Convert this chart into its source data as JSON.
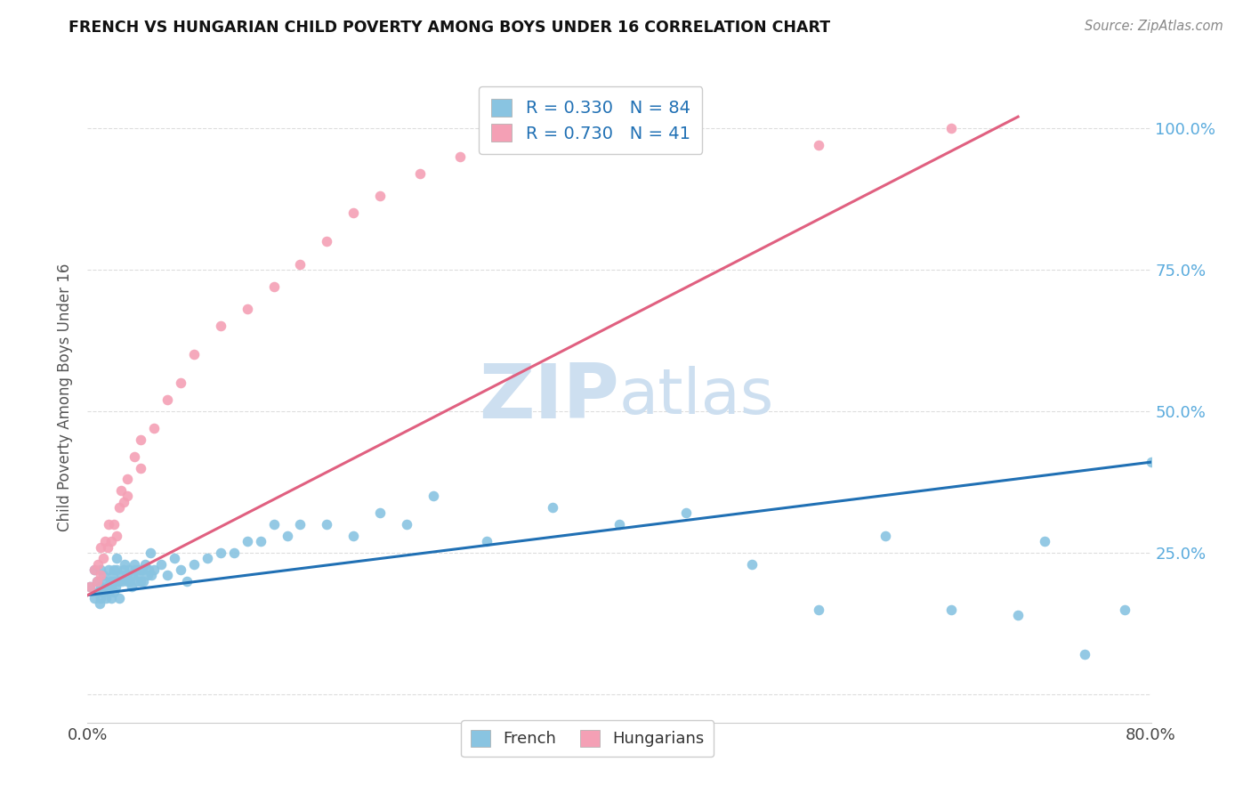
{
  "title": "FRENCH VS HUNGARIAN CHILD POVERTY AMONG BOYS UNDER 16 CORRELATION CHART",
  "source": "Source: ZipAtlas.com",
  "ylabel": "Child Poverty Among Boys Under 16",
  "xlim": [
    0.0,
    0.8
  ],
  "ylim": [
    -0.05,
    1.1
  ],
  "french_color": "#89c4e1",
  "hungarian_color": "#f4a0b5",
  "french_line_color": "#2070b4",
  "hungarian_line_color": "#e06080",
  "french_R": 0.33,
  "french_N": 84,
  "hungarian_R": 0.73,
  "hungarian_N": 41,
  "watermark_color": "#cddff0",
  "background_color": "#ffffff",
  "french_line_x0": 0.0,
  "french_line_y0": 0.175,
  "french_line_x1": 0.8,
  "french_line_y1": 0.41,
  "hungarian_line_x0": 0.0,
  "hungarian_line_y0": 0.175,
  "hungarian_line_x1": 0.7,
  "hungarian_line_y1": 1.02,
  "french_x": [
    0.002,
    0.005,
    0.005,
    0.007,
    0.008,
    0.009,
    0.01,
    0.01,
    0.01,
    0.012,
    0.012,
    0.013,
    0.014,
    0.015,
    0.016,
    0.016,
    0.017,
    0.018,
    0.018,
    0.019,
    0.02,
    0.02,
    0.02,
    0.021,
    0.022,
    0.022,
    0.023,
    0.024,
    0.025,
    0.026,
    0.027,
    0.028,
    0.03,
    0.03,
    0.031,
    0.032,
    0.033,
    0.034,
    0.035,
    0.036,
    0.037,
    0.038,
    0.04,
    0.04,
    0.041,
    0.042,
    0.043,
    0.045,
    0.046,
    0.047,
    0.048,
    0.05,
    0.055,
    0.06,
    0.065,
    0.07,
    0.075,
    0.08,
    0.09,
    0.1,
    0.11,
    0.12,
    0.13,
    0.14,
    0.15,
    0.16,
    0.18,
    0.2,
    0.22,
    0.24,
    0.26,
    0.3,
    0.35,
    0.4,
    0.45,
    0.5,
    0.55,
    0.6,
    0.65,
    0.7,
    0.72,
    0.75,
    0.78,
    0.8
  ],
  "french_y": [
    0.19,
    0.22,
    0.17,
    0.2,
    0.18,
    0.16,
    0.22,
    0.19,
    0.17,
    0.21,
    0.18,
    0.2,
    0.17,
    0.19,
    0.18,
    0.22,
    0.2,
    0.19,
    0.17,
    0.21,
    0.22,
    0.18,
    0.2,
    0.19,
    0.22,
    0.24,
    0.2,
    0.17,
    0.21,
    0.2,
    0.22,
    0.23,
    0.2,
    0.21,
    0.22,
    0.2,
    0.19,
    0.21,
    0.23,
    0.22,
    0.2,
    0.21,
    0.22,
    0.2,
    0.22,
    0.2,
    0.23,
    0.21,
    0.22,
    0.25,
    0.21,
    0.22,
    0.23,
    0.21,
    0.24,
    0.22,
    0.2,
    0.23,
    0.24,
    0.25,
    0.25,
    0.27,
    0.27,
    0.3,
    0.28,
    0.3,
    0.3,
    0.28,
    0.32,
    0.3,
    0.35,
    0.27,
    0.33,
    0.3,
    0.32,
    0.23,
    0.15,
    0.28,
    0.15,
    0.14,
    0.27,
    0.07,
    0.15,
    0.41
  ],
  "hungarian_x": [
    0.002,
    0.005,
    0.007,
    0.008,
    0.01,
    0.01,
    0.012,
    0.013,
    0.015,
    0.016,
    0.018,
    0.02,
    0.022,
    0.024,
    0.025,
    0.027,
    0.03,
    0.03,
    0.035,
    0.04,
    0.04,
    0.05,
    0.06,
    0.07,
    0.08,
    0.1,
    0.12,
    0.14,
    0.16,
    0.18,
    0.2,
    0.22,
    0.25,
    0.28,
    0.3,
    0.33,
    0.35,
    0.4,
    0.45,
    0.55,
    0.65
  ],
  "hungarian_y": [
    0.19,
    0.22,
    0.2,
    0.23,
    0.26,
    0.21,
    0.24,
    0.27,
    0.26,
    0.3,
    0.27,
    0.3,
    0.28,
    0.33,
    0.36,
    0.34,
    0.38,
    0.35,
    0.42,
    0.45,
    0.4,
    0.47,
    0.52,
    0.55,
    0.6,
    0.65,
    0.68,
    0.72,
    0.76,
    0.8,
    0.85,
    0.88,
    0.92,
    0.95,
    0.98,
    1.0,
    1.0,
    0.97,
    0.98,
    0.97,
    1.0
  ]
}
